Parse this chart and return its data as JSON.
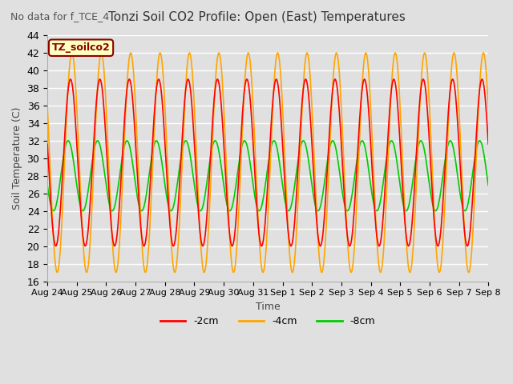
{
  "title": "Tonzi Soil CO2 Profile: Open (East) Temperatures",
  "subtitle": "No data for f_TCE_4",
  "ylabel": "Soil Temperature (C)",
  "xlabel": "Time",
  "ylim": [
    16,
    44
  ],
  "yticks": [
    16,
    18,
    20,
    22,
    24,
    26,
    28,
    30,
    32,
    34,
    36,
    38,
    40,
    42,
    44
  ],
  "xtick_labels": [
    "Aug 24",
    "Aug 25",
    "Aug 26",
    "Aug 27",
    "Aug 28",
    "Aug 29",
    "Aug 30",
    "Aug 31",
    "Sep 1",
    "Sep 2",
    "Sep 3",
    "Sep 4",
    "Sep 5",
    "Sep 6",
    "Sep 7",
    "Sep 8"
  ],
  "legend_entries": [
    "-2cm",
    "-4cm",
    "-8cm"
  ],
  "legend_colors": [
    "#ff0000",
    "#ffa500",
    "#00cc00"
  ],
  "line_colors": [
    "#ff0000",
    "#ffa500",
    "#00cc00"
  ],
  "background_color": "#e0e0e0",
  "plot_bg_color": "#e0e0e0",
  "grid_color": "#ffffff",
  "title_color": "#333333",
  "n_days": 15,
  "pts_per_day": 48
}
